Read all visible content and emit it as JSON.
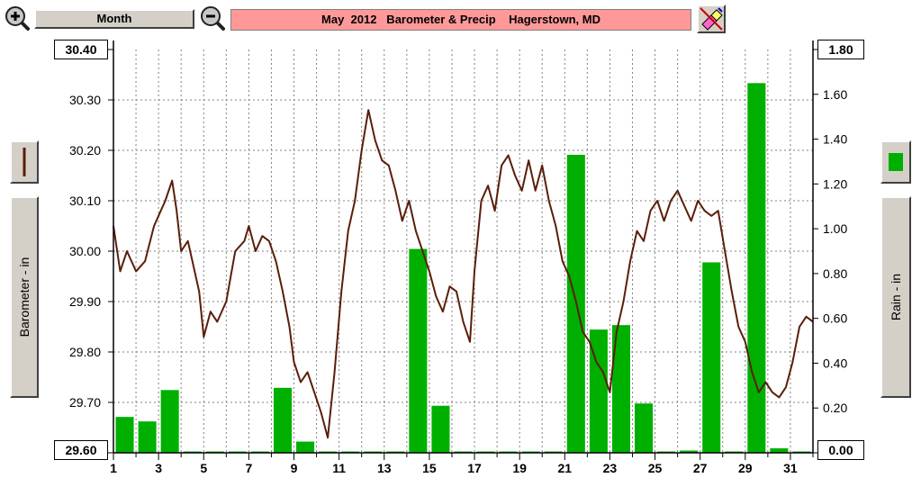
{
  "header": {
    "period_label": "Month",
    "title": "May  2012   Barometer & Precip    Hagerstown, MD"
  },
  "icons": {
    "zoom_in": "zoom-in-magnifier-icon",
    "zoom_out": "zoom-out-magnifier-icon",
    "tools": "eraser-pencil-icon",
    "left_legend": "line-swatch-icon",
    "right_legend": "bar-swatch-icon"
  },
  "colors": {
    "barometer_line": "#5a1e0a",
    "rain_bars": "#00b000",
    "title_bg": "#ff9999",
    "grid": "#808080"
  },
  "chart_data": {
    "type": "bar+line",
    "title": "May  2012   Barometer & Precip    Hagerstown, MD",
    "x_axis": {
      "label": "",
      "range": [
        1,
        32
      ],
      "ticks": [
        "1",
        "3",
        "5",
        "7",
        "9",
        "11",
        "13",
        "15",
        "17",
        "19",
        "21",
        "23",
        "25",
        "27",
        "29",
        "31"
      ]
    },
    "y_left": {
      "label": "Barometer - in",
      "range": [
        29.6,
        30.4
      ],
      "ticks": [
        "30.40",
        "30.30",
        "30.20",
        "30.10",
        "30.00",
        "29.90",
        "29.80",
        "29.70",
        "29.60"
      ]
    },
    "y_right": {
      "label": "Rain - in",
      "range": [
        0,
        1.8
      ],
      "ticks": [
        "1.80",
        "1.60",
        "1.40",
        "1.20",
        "1.00",
        "0.80",
        "0.60",
        "0.40",
        "0.20",
        "0.00"
      ]
    },
    "grid": true,
    "rain": {
      "days": [
        1,
        2,
        3,
        4,
        5,
        6,
        7,
        8,
        9,
        10,
        11,
        12,
        13,
        14,
        15,
        16,
        17,
        18,
        19,
        20,
        21,
        22,
        23,
        24,
        25,
        26,
        27,
        28,
        29,
        30,
        31
      ],
      "values": [
        0.16,
        0.14,
        0.28,
        0,
        0,
        0,
        0,
        0.29,
        0.05,
        0,
        0,
        0,
        0,
        0.91,
        0.21,
        0,
        0,
        0,
        0,
        0,
        1.33,
        0.55,
        0.57,
        0.22,
        0,
        0.01,
        0.85,
        0,
        1.65,
        0.02,
        0
      ]
    },
    "barometer": {
      "x": [
        1,
        1.3,
        1.6,
        2,
        2.4,
        2.8,
        3,
        3.3,
        3.6,
        3.8,
        4,
        4.3,
        4.6,
        4.8,
        5,
        5.3,
        5.6,
        6,
        6.4,
        6.8,
        7,
        7.3,
        7.6,
        7.9,
        8.2,
        8.5,
        8.8,
        9,
        9.3,
        9.6,
        9.9,
        10.2,
        10.5,
        10.8,
        11.1,
        11.4,
        11.7,
        12,
        12.3,
        12.6,
        12.9,
        13.2,
        13.5,
        13.8,
        14.1,
        14.4,
        14.7,
        15,
        15.3,
        15.6,
        15.9,
        16.2,
        16.5,
        16.8,
        17,
        17.3,
        17.6,
        17.9,
        18.2,
        18.5,
        18.8,
        19.1,
        19.4,
        19.7,
        20,
        20.3,
        20.6,
        20.9,
        21.2,
        21.5,
        21.8,
        22.1,
        22.4,
        22.7,
        23,
        23.3,
        23.6,
        23.9,
        24.2,
        24.5,
        24.8,
        25.1,
        25.4,
        25.7,
        26,
        26.3,
        26.6,
        26.9,
        27.2,
        27.5,
        27.8,
        28.1,
        28.4,
        28.7,
        29,
        29.3,
        29.6,
        29.9,
        30.2,
        30.5,
        30.8,
        31.1,
        31.4,
        31.7,
        32
      ],
      "y": [
        30.05,
        29.96,
        30.0,
        29.96,
        29.98,
        30.05,
        30.07,
        30.1,
        30.14,
        30.08,
        30.0,
        30.02,
        29.96,
        29.92,
        29.83,
        29.88,
        29.86,
        29.9,
        30.0,
        30.02,
        30.05,
        30.0,
        30.03,
        30.02,
        29.98,
        29.92,
        29.85,
        29.78,
        29.74,
        29.76,
        29.72,
        29.68,
        29.63,
        29.76,
        29.92,
        30.04,
        30.1,
        30.2,
        30.28,
        30.22,
        30.18,
        30.17,
        30.12,
        30.06,
        30.1,
        30.04,
        30.0,
        29.96,
        29.91,
        29.88,
        29.93,
        29.92,
        29.86,
        29.82,
        29.96,
        30.1,
        30.13,
        30.08,
        30.17,
        30.19,
        30.15,
        30.12,
        30.18,
        30.12,
        30.17,
        30.1,
        30.05,
        29.98,
        29.95,
        29.9,
        29.84,
        29.82,
        29.78,
        29.76,
        29.72,
        29.84,
        29.9,
        29.98,
        30.04,
        30.02,
        30.08,
        30.1,
        30.06,
        30.1,
        30.12,
        30.09,
        30.06,
        30.1,
        30.08,
        30.07,
        30.08,
        30.0,
        29.92,
        29.85,
        29.82,
        29.76,
        29.72,
        29.74,
        29.72,
        29.71,
        29.73,
        29.78,
        29.85,
        29.87,
        29.86
      ]
    }
  }
}
